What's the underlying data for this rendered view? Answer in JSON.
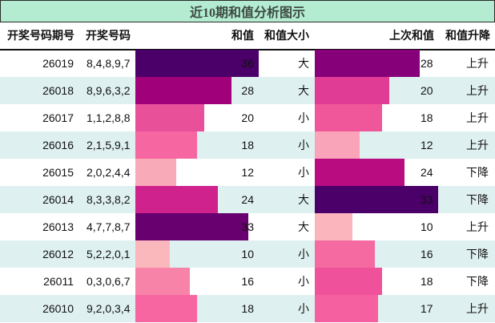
{
  "title": "近10期和值分析图示",
  "header": {
    "issue": "开奖号码期号",
    "numbers": "开奖号码",
    "sum": "和值",
    "size": "和值大小",
    "prev_sum": "上次和值",
    "trend": "和值升降"
  },
  "colors": {
    "title_bg": "#b3ecd0",
    "row_alt_bg": "#dff0f0"
  },
  "rows": [
    {
      "issue": "26019",
      "numbers": "8,4,8,9,7",
      "sum": "36",
      "size": "大",
      "prev_sum": "28",
      "trend": "上升",
      "sum_color": "#4a0068",
      "prev_color": "#86007a"
    },
    {
      "issue": "26018",
      "numbers": "8,9,6,3,2",
      "sum": "28",
      "size": "大",
      "prev_sum": "20",
      "trend": "上升",
      "sum_color": "#a0007a",
      "prev_color": "#e03c96"
    },
    {
      "issue": "26017",
      "numbers": "1,1,2,8,8",
      "sum": "20",
      "size": "小",
      "prev_sum": "18",
      "trend": "上升",
      "sum_color": "#e8509a",
      "prev_color": "#f0569a"
    },
    {
      "issue": "26016",
      "numbers": "2,1,5,9,1",
      "sum": "18",
      "size": "小",
      "prev_sum": "12",
      "trend": "上升",
      "sum_color": "#f666a0",
      "prev_color": "#f9a4b8"
    },
    {
      "issue": "26015",
      "numbers": "2,0,2,4,4",
      "sum": "12",
      "size": "小",
      "prev_sum": "24",
      "trend": "下降",
      "sum_color": "#f9aab8",
      "prev_color": "#b80c80"
    },
    {
      "issue": "26014",
      "numbers": "8,3,3,8,2",
      "sum": "24",
      "size": "大",
      "prev_sum": "33",
      "trend": "下降",
      "sum_color": "#d0228c",
      "prev_color": "#4a0068"
    },
    {
      "issue": "26013",
      "numbers": "4,7,7,8,7",
      "sum": "33",
      "size": "大",
      "prev_sum": "10",
      "trend": "上升",
      "sum_color": "#680070",
      "prev_color": "#fab6bc"
    },
    {
      "issue": "26012",
      "numbers": "5,2,2,0,1",
      "sum": "10",
      "size": "小",
      "prev_sum": "16",
      "trend": "下降",
      "sum_color": "#fbb8bc",
      "prev_color": "#f56aa0"
    },
    {
      "issue": "26011",
      "numbers": "0,3,0,6,7",
      "sum": "16",
      "size": "小",
      "prev_sum": "18",
      "trend": "下降",
      "sum_color": "#f784a8",
      "prev_color": "#ef529a"
    },
    {
      "issue": "26010",
      "numbers": "9,2,0,3,4",
      "sum": "18",
      "size": "小",
      "prev_sum": "17",
      "trend": "上升",
      "sum_color": "#f766a0",
      "prev_color": "#f560a0"
    }
  ]
}
